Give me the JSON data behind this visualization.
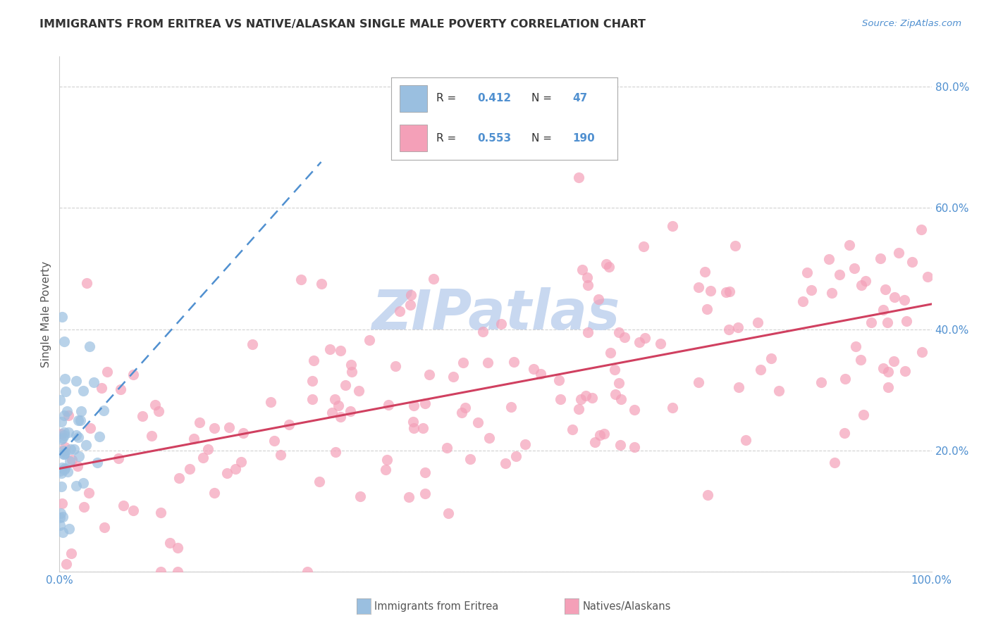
{
  "title": "IMMIGRANTS FROM ERITREA VS NATIVE/ALASKAN SINGLE MALE POVERTY CORRELATION CHART",
  "source": "Source: ZipAtlas.com",
  "ylabel": "Single Male Poverty",
  "r_eritrea": 0.412,
  "n_eritrea": 47,
  "r_native": 0.553,
  "n_native": 190,
  "eritrea_color": "#9abfe0",
  "native_color": "#f4a0b8",
  "trendline_eritrea_color": "#5090d0",
  "trendline_native_color": "#d04060",
  "background_color": "#ffffff",
  "grid_color": "#cccccc",
  "watermark_color": "#c8d8f0",
  "watermark_text": "ZIPatlas",
  "tick_color": "#5090d0",
  "title_color": "#333333",
  "source_color": "#5090d0",
  "legend_text_color": "#333333",
  "legend_value_color": "#5090d0"
}
